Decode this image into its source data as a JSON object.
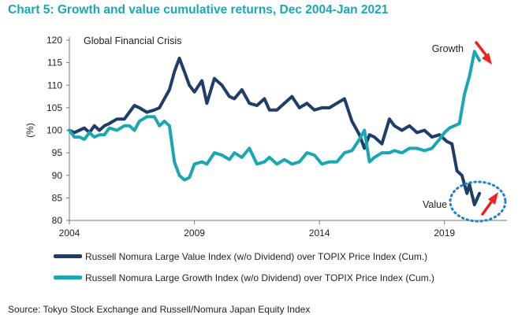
{
  "title": "Chart 5: Growth and value cumulative returns, Dec 2004-Jan 2021",
  "source": "Source: Tokyo Stock Exchange and Russell/Nomura Japan Equity Index",
  "colors": {
    "value": "#1f3d6b",
    "growth": "#1aa7b5",
    "title": "#1aa7b5",
    "arrow": "#e8261f",
    "circle": "#1c7fcf",
    "axis": "#777777"
  },
  "chart_data": {
    "type": "line",
    "ylabel": "(%)",
    "xlabel": "",
    "ylim": [
      80,
      120
    ],
    "xlim": [
      2004.0,
      2021.5
    ],
    "yticks": [
      80,
      85,
      90,
      95,
      100,
      105,
      110,
      115,
      120
    ],
    "xticks": [
      2004,
      2009,
      2014,
      2019
    ],
    "grid": false,
    "legend_position": "bottom",
    "annotations": {
      "crisis": "Global Financial Crisis",
      "growth": "Growth",
      "value": "Value"
    },
    "series": [
      {
        "name": "Russell Nomura Large Value Index (w/o Dividend) over TOPIX Price Index (Cum.)",
        "color": "#1f3d6b",
        "x": [
          2004.0,
          2004.2,
          2004.4,
          2004.6,
          2004.8,
          2005.0,
          2005.2,
          2005.4,
          2005.6,
          2005.9,
          2006.2,
          2006.4,
          2006.6,
          2006.8,
          2007.1,
          2007.4,
          2007.6,
          2007.8,
          2008.0,
          2008.2,
          2008.4,
          2008.6,
          2008.8,
          2009.0,
          2009.3,
          2009.5,
          2009.8,
          2010.1,
          2010.4,
          2010.6,
          2010.9,
          2011.2,
          2011.5,
          2011.8,
          2012.0,
          2012.3,
          2012.6,
          2012.9,
          2013.2,
          2013.5,
          2013.8,
          2014.1,
          2014.4,
          2014.7,
          2015.0,
          2015.3,
          2015.6,
          2015.8,
          2016.0,
          2016.2,
          2016.5,
          2016.8,
          2017.0,
          2017.3,
          2017.6,
          2017.9,
          2018.2,
          2018.5,
          2018.8,
          2019.0,
          2019.1,
          2019.3,
          2019.5,
          2019.7,
          2019.9,
          2020.0,
          2020.2,
          2020.4
        ],
        "values": [
          100,
          99.5,
          100,
          100.5,
          99.5,
          101,
          100,
          101,
          101.5,
          102.5,
          102.5,
          104,
          105.5,
          105,
          104,
          104.5,
          105,
          107,
          109,
          113,
          116,
          113,
          110,
          108.5,
          111,
          106,
          111.5,
          110,
          107.5,
          107,
          109,
          106,
          105.5,
          107,
          104.5,
          104.5,
          106,
          107.5,
          105,
          106,
          104.5,
          105,
          105,
          106,
          107,
          102,
          99,
          96,
          99,
          98.5,
          97,
          102.5,
          101,
          100,
          101,
          99.5,
          100,
          98.5,
          99,
          98,
          97.5,
          97,
          91,
          90,
          86,
          88,
          83.5,
          86
        ]
      },
      {
        "name": "Russell Nomura Large Growth Index (w/o Dividend) over TOPIX Price Index (Cum.)",
        "color": "#1aa7b5",
        "x": [
          2004.0,
          2004.2,
          2004.4,
          2004.6,
          2004.8,
          2005.0,
          2005.2,
          2005.4,
          2005.6,
          2005.9,
          2006.2,
          2006.4,
          2006.6,
          2006.8,
          2007.1,
          2007.4,
          2007.6,
          2007.8,
          2008.0,
          2008.2,
          2008.4,
          2008.6,
          2008.8,
          2009.0,
          2009.3,
          2009.5,
          2009.8,
          2010.1,
          2010.4,
          2010.6,
          2010.9,
          2011.2,
          2011.5,
          2011.8,
          2012.0,
          2012.3,
          2012.6,
          2012.9,
          2013.2,
          2013.5,
          2013.8,
          2014.1,
          2014.4,
          2014.7,
          2015.0,
          2015.3,
          2015.6,
          2015.8,
          2016.0,
          2016.2,
          2016.5,
          2016.8,
          2017.0,
          2017.3,
          2017.6,
          2017.9,
          2018.2,
          2018.5,
          2018.8,
          2019.0,
          2019.2,
          2019.4,
          2019.6,
          2019.8,
          2020.0,
          2020.2,
          2020.4
        ],
        "values": [
          100,
          98.5,
          98.5,
          98,
          99.5,
          98.5,
          99,
          99,
          100.5,
          100,
          101,
          101,
          100,
          102,
          103,
          103,
          101,
          102,
          101,
          93,
          90,
          89,
          89.5,
          92.5,
          93,
          92.5,
          95,
          94.5,
          93.5,
          95,
          94,
          96,
          92.5,
          93,
          94,
          92.5,
          93.5,
          92.5,
          93,
          95,
          94.5,
          92.5,
          93,
          93,
          95,
          95.5,
          98,
          100,
          93,
          94,
          95,
          95,
          95.5,
          95,
          96,
          96,
          95.5,
          96,
          98,
          99.5,
          100.5,
          101,
          101.5,
          108,
          112,
          117.5,
          115.5
        ]
      }
    ]
  }
}
